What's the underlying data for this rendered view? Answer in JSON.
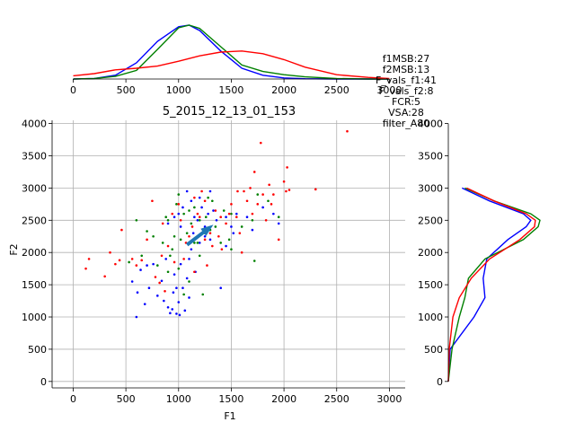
{
  "chart_data": {
    "type": "scatter",
    "title": "5_2015_12_13_01_153",
    "xlabel": "F1",
    "ylabel": "F2",
    "xlim": [
      -200,
      3150
    ],
    "ylim": [
      -100,
      4050
    ],
    "xticks": [
      0,
      500,
      1000,
      1500,
      2000,
      2500,
      3000
    ],
    "yticks": [
      0,
      500,
      1000,
      1500,
      2000,
      2500,
      3000,
      3500,
      4000
    ],
    "grid": true,
    "stats_text": [
      "f1MSB:27",
      "f2MSB:13",
      "F_vals_f1:41",
      "F_vals_f2:8",
      "FCR:5",
      "VSA:28",
      "filter_A80"
    ],
    "arrow": {
      "from": [
        1080,
        2120
      ],
      "to": [
        1330,
        2430
      ],
      "color": "#1f77b4"
    },
    "series": [
      {
        "color": "#0000ff",
        "points": [
          [
            600,
            1000
          ],
          [
            610,
            1380
          ],
          [
            640,
            1730
          ],
          [
            680,
            1200
          ],
          [
            720,
            1450
          ],
          [
            760,
            1820
          ],
          [
            800,
            1330
          ],
          [
            840,
            1560
          ],
          [
            860,
            1250
          ],
          [
            880,
            1900
          ],
          [
            900,
            1150
          ],
          [
            920,
            1060
          ],
          [
            940,
            1120
          ],
          [
            950,
            1380
          ],
          [
            960,
            1660
          ],
          [
            980,
            1050
          ],
          [
            1000,
            1230
          ],
          [
            1010,
            1030
          ],
          [
            1020,
            1820
          ],
          [
            1040,
            1450
          ],
          [
            1060,
            1100
          ],
          [
            1080,
            1600
          ],
          [
            1100,
            1300
          ],
          [
            1120,
            2050
          ],
          [
            1140,
            2300
          ],
          [
            1160,
            1700
          ],
          [
            1180,
            2500
          ],
          [
            1200,
            2150
          ],
          [
            1220,
            2700
          ],
          [
            1250,
            2400
          ],
          [
            1280,
            2600
          ],
          [
            1300,
            2200
          ],
          [
            1330,
            2650
          ],
          [
            1360,
            2500
          ],
          [
            1400,
            1450
          ],
          [
            1450,
            2550
          ],
          [
            1500,
            2400
          ],
          [
            1550,
            2600
          ],
          [
            1650,
            2550
          ],
          [
            1700,
            2350
          ],
          [
            1800,
            2700
          ],
          [
            1900,
            2600
          ],
          [
            1950,
            2450
          ],
          [
            1000,
            2600
          ],
          [
            1040,
            2700
          ],
          [
            1080,
            2950
          ],
          [
            1120,
            2800
          ],
          [
            700,
            1800
          ],
          [
            560,
            1550
          ],
          [
            1150,
            2550
          ],
          [
            1250,
            2250
          ],
          [
            900,
            2450
          ],
          [
            960,
            2550
          ],
          [
            1020,
            2400
          ],
          [
            1100,
            1900
          ],
          [
            1200,
            2850
          ],
          [
            1300,
            2950
          ],
          [
            1450,
            2100
          ],
          [
            1520,
            2300
          ],
          [
            980,
            1450
          ]
        ]
      },
      {
        "color": "#008000",
        "points": [
          [
            530,
            1850
          ],
          [
            600,
            2500
          ],
          [
            650,
            1950
          ],
          [
            700,
            2330
          ],
          [
            760,
            2250
          ],
          [
            800,
            1800
          ],
          [
            850,
            2150
          ],
          [
            880,
            2550
          ],
          [
            900,
            1700
          ],
          [
            920,
            1950
          ],
          [
            940,
            2050
          ],
          [
            980,
            2750
          ],
          [
            1000,
            1750
          ],
          [
            1020,
            2200
          ],
          [
            1050,
            2600
          ],
          [
            1080,
            2300
          ],
          [
            1100,
            1550
          ],
          [
            1120,
            2450
          ],
          [
            1150,
            2700
          ],
          [
            1180,
            2150
          ],
          [
            1200,
            1950
          ],
          [
            1230,
            1350
          ],
          [
            1260,
            2550
          ],
          [
            1280,
            2850
          ],
          [
            1300,
            2350
          ],
          [
            1350,
            2400
          ],
          [
            1400,
            2150
          ],
          [
            1430,
            2650
          ],
          [
            1480,
            2200
          ],
          [
            1500,
            2050
          ],
          [
            1600,
            2400
          ],
          [
            1700,
            2500
          ],
          [
            1720,
            1870
          ],
          [
            1750,
            2900
          ],
          [
            1850,
            2800
          ],
          [
            1950,
            2550
          ],
          [
            1000,
            2900
          ],
          [
            1100,
            2650
          ],
          [
            900,
            2500
          ],
          [
            1200,
            2500
          ],
          [
            1320,
            2800
          ],
          [
            1050,
            1350
          ],
          [
            1150,
            2150
          ],
          [
            960,
            2250
          ],
          [
            1500,
            2600
          ],
          [
            1250,
            2300
          ]
        ]
      },
      {
        "color": "#ff0000",
        "points": [
          [
            120,
            1750
          ],
          [
            150,
            1900
          ],
          [
            300,
            1630
          ],
          [
            350,
            2000
          ],
          [
            400,
            1820
          ],
          [
            440,
            1880
          ],
          [
            460,
            2350
          ],
          [
            560,
            1900
          ],
          [
            600,
            1800
          ],
          [
            650,
            1880
          ],
          [
            700,
            2200
          ],
          [
            750,
            2800
          ],
          [
            780,
            1620
          ],
          [
            820,
            1530
          ],
          [
            840,
            1950
          ],
          [
            870,
            1400
          ],
          [
            900,
            2100
          ],
          [
            940,
            2600
          ],
          [
            960,
            1850
          ],
          [
            1000,
            2750
          ],
          [
            1020,
            2500
          ],
          [
            1050,
            1900
          ],
          [
            1070,
            2150
          ],
          [
            1100,
            2250
          ],
          [
            1130,
            2400
          ],
          [
            1150,
            1700
          ],
          [
            1180,
            2600
          ],
          [
            1200,
            2550
          ],
          [
            1220,
            2950
          ],
          [
            1250,
            2800
          ],
          [
            1270,
            1800
          ],
          [
            1300,
            2300
          ],
          [
            1320,
            2100
          ],
          [
            1350,
            2650
          ],
          [
            1380,
            2250
          ],
          [
            1400,
            2550
          ],
          [
            1450,
            2450
          ],
          [
            1500,
            2750
          ],
          [
            1550,
            2550
          ],
          [
            1580,
            2300
          ],
          [
            1600,
            2000
          ],
          [
            1620,
            2950
          ],
          [
            1650,
            2800
          ],
          [
            1680,
            3000
          ],
          [
            1700,
            2600
          ],
          [
            1750,
            2750
          ],
          [
            1780,
            3700
          ],
          [
            1800,
            2900
          ],
          [
            1830,
            2500
          ],
          [
            1860,
            3050
          ],
          [
            1880,
            2750
          ],
          [
            1900,
            2900
          ],
          [
            1950,
            2200
          ],
          [
            2000,
            3100
          ],
          [
            2030,
            3320
          ],
          [
            2050,
            2970
          ],
          [
            2300,
            2980
          ],
          [
            2600,
            3880
          ],
          [
            1720,
            3250
          ],
          [
            1560,
            2950
          ],
          [
            1480,
            2600
          ],
          [
            1150,
            2850
          ],
          [
            850,
            2450
          ],
          [
            1250,
            2200
          ],
          [
            1410,
            2050
          ],
          [
            2020,
            2950
          ]
        ]
      }
    ],
    "top_density": {
      "x": [
        0,
        200,
        400,
        600,
        800,
        1000,
        1100,
        1200,
        1400,
        1600,
        1800,
        2000,
        2200,
        2500,
        2800,
        3000
      ],
      "series": [
        {
          "color": "#0000ff",
          "values": [
            0.0,
            0.01,
            0.07,
            0.3,
            0.7,
            0.97,
            1.0,
            0.9,
            0.52,
            0.2,
            0.07,
            0.02,
            0.005,
            0.0,
            0.0,
            0.0
          ]
        },
        {
          "color": "#008000",
          "values": [
            0.0,
            0.01,
            0.05,
            0.16,
            0.55,
            0.95,
            1.0,
            0.94,
            0.6,
            0.26,
            0.14,
            0.08,
            0.04,
            0.01,
            0.0,
            0.0
          ]
        },
        {
          "color": "#ff0000",
          "values": [
            0.06,
            0.1,
            0.17,
            0.2,
            0.24,
            0.33,
            0.38,
            0.43,
            0.5,
            0.52,
            0.47,
            0.36,
            0.22,
            0.08,
            0.03,
            0.01
          ]
        }
      ]
    },
    "right_density": {
      "y": [
        0,
        500,
        1000,
        1300,
        1600,
        1900,
        2200,
        2400,
        2500,
        2600,
        2800,
        3000
      ],
      "series": [
        {
          "color": "#0000ff",
          "values": [
            0.0,
            0.02,
            0.28,
            0.4,
            0.38,
            0.42,
            0.65,
            0.85,
            0.9,
            0.82,
            0.45,
            0.15
          ]
        },
        {
          "color": "#008000",
          "values": [
            0.0,
            0.04,
            0.12,
            0.18,
            0.22,
            0.4,
            0.82,
            0.98,
            1.0,
            0.9,
            0.5,
            0.18
          ]
        },
        {
          "color": "#ff0000",
          "values": [
            0.0,
            0.01,
            0.05,
            0.12,
            0.25,
            0.45,
            0.78,
            0.94,
            0.95,
            0.85,
            0.5,
            0.2
          ]
        }
      ]
    }
  }
}
